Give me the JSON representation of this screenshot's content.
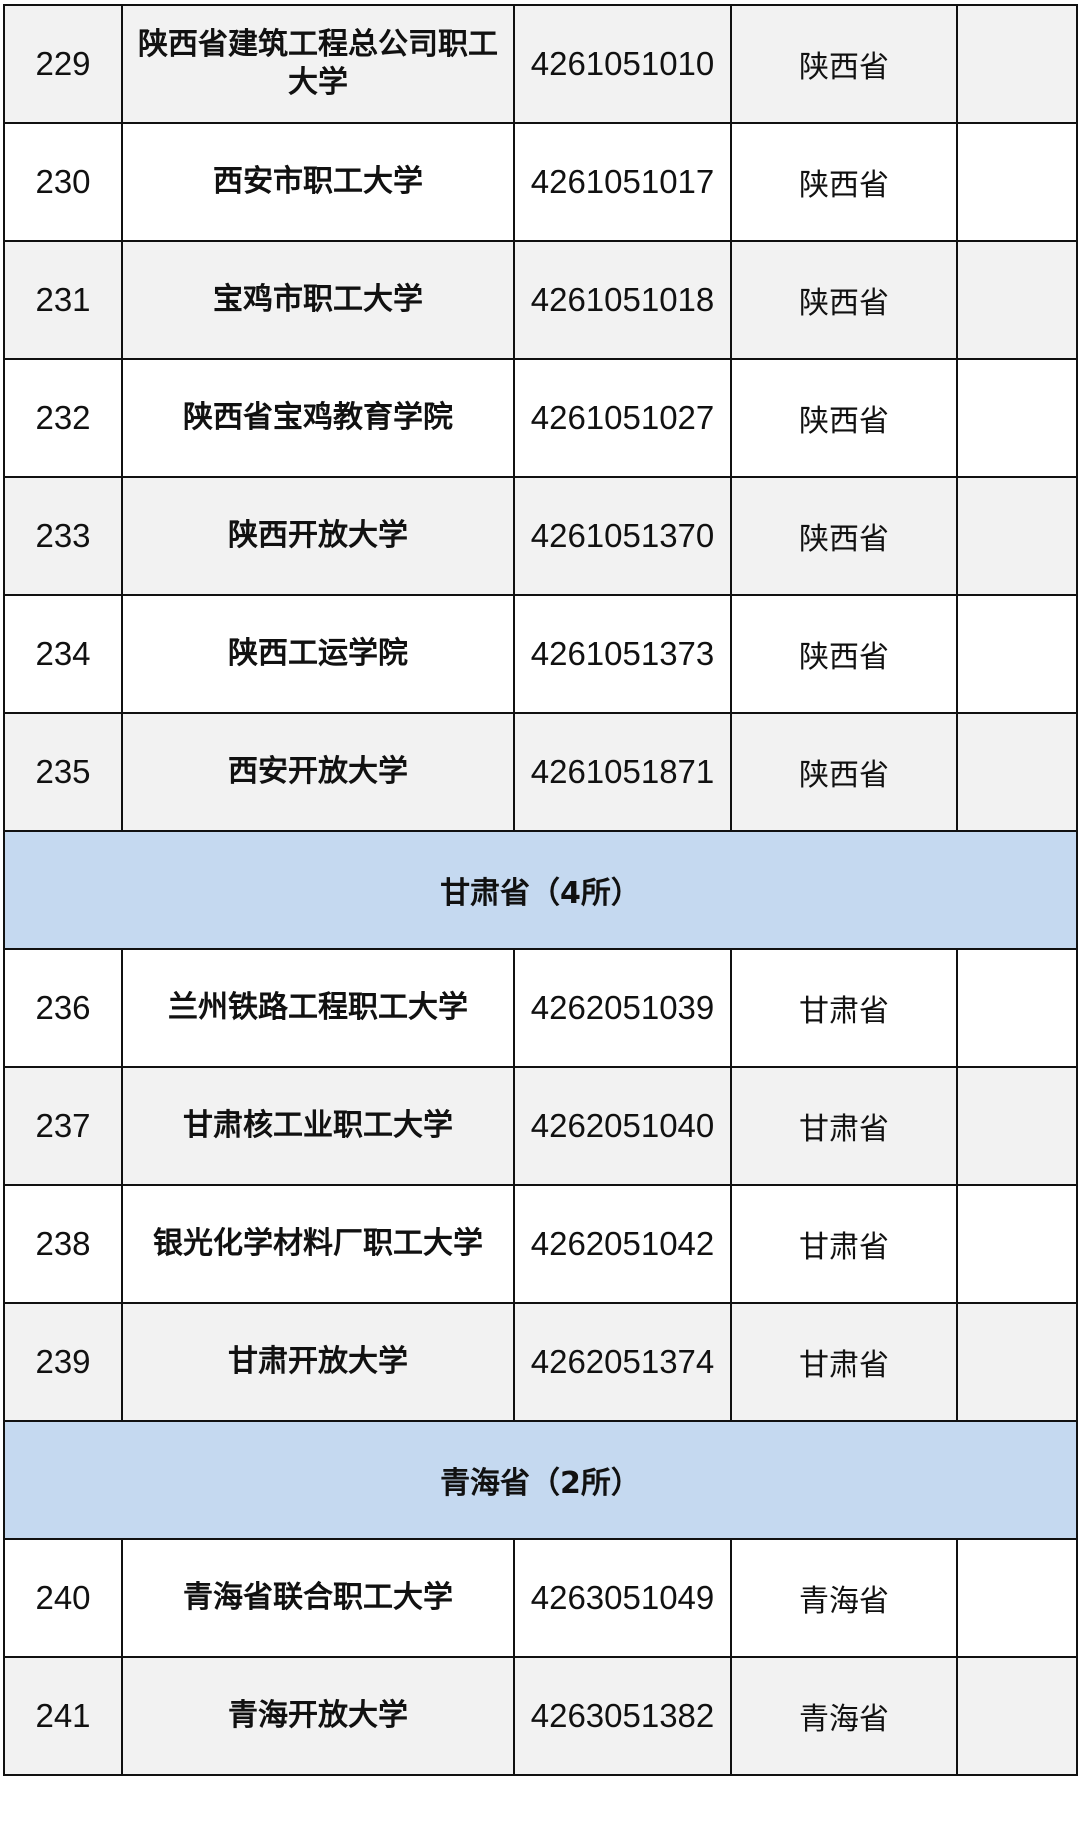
{
  "colors": {
    "section_bg": "#c5d9f0",
    "row_grey": "#f2f2f2",
    "row_white": "#ffffff",
    "border": "#111111"
  },
  "rows": [
    {
      "type": "row",
      "no": "229",
      "name": "陕西省建筑工程总公司职工大学",
      "code": "4261051010",
      "province": "陕西省",
      "note": "",
      "shade": "grey"
    },
    {
      "type": "row",
      "no": "230",
      "name": "西安市职工大学",
      "code": "4261051017",
      "province": "陕西省",
      "note": "",
      "shade": "white"
    },
    {
      "type": "row",
      "no": "231",
      "name": "宝鸡市职工大学",
      "code": "4261051018",
      "province": "陕西省",
      "note": "",
      "shade": "grey"
    },
    {
      "type": "row",
      "no": "232",
      "name": "陕西省宝鸡教育学院",
      "code": "4261051027",
      "province": "陕西省",
      "note": "",
      "shade": "white"
    },
    {
      "type": "row",
      "no": "233",
      "name": "陕西开放大学",
      "code": "4261051370",
      "province": "陕西省",
      "note": "",
      "shade": "grey"
    },
    {
      "type": "row",
      "no": "234",
      "name": "陕西工运学院",
      "code": "4261051373",
      "province": "陕西省",
      "note": "",
      "shade": "white"
    },
    {
      "type": "row",
      "no": "235",
      "name": "西安开放大学",
      "code": "4261051871",
      "province": "陕西省",
      "note": "",
      "shade": "grey"
    },
    {
      "type": "section",
      "title": "甘肃省（4所）"
    },
    {
      "type": "row",
      "no": "236",
      "name": "兰州铁路工程职工大学",
      "code": "4262051039",
      "province": "甘肃省",
      "note": "",
      "shade": "white"
    },
    {
      "type": "row",
      "no": "237",
      "name": "甘肃核工业职工大学",
      "code": "4262051040",
      "province": "甘肃省",
      "note": "",
      "shade": "grey"
    },
    {
      "type": "row",
      "no": "238",
      "name": "银光化学材料厂职工大学",
      "code": "4262051042",
      "province": "甘肃省",
      "note": "",
      "shade": "white"
    },
    {
      "type": "row",
      "no": "239",
      "name": "甘肃开放大学",
      "code": "4262051374",
      "province": "甘肃省",
      "note": "",
      "shade": "grey"
    },
    {
      "type": "section",
      "title": "青海省（2所）"
    },
    {
      "type": "row",
      "no": "240",
      "name": "青海省联合职工大学",
      "code": "4263051049",
      "province": "青海省",
      "note": "",
      "shade": "white"
    },
    {
      "type": "row",
      "no": "241",
      "name": "青海开放大学",
      "code": "4263051382",
      "province": "青海省",
      "note": "",
      "shade": "grey"
    }
  ]
}
